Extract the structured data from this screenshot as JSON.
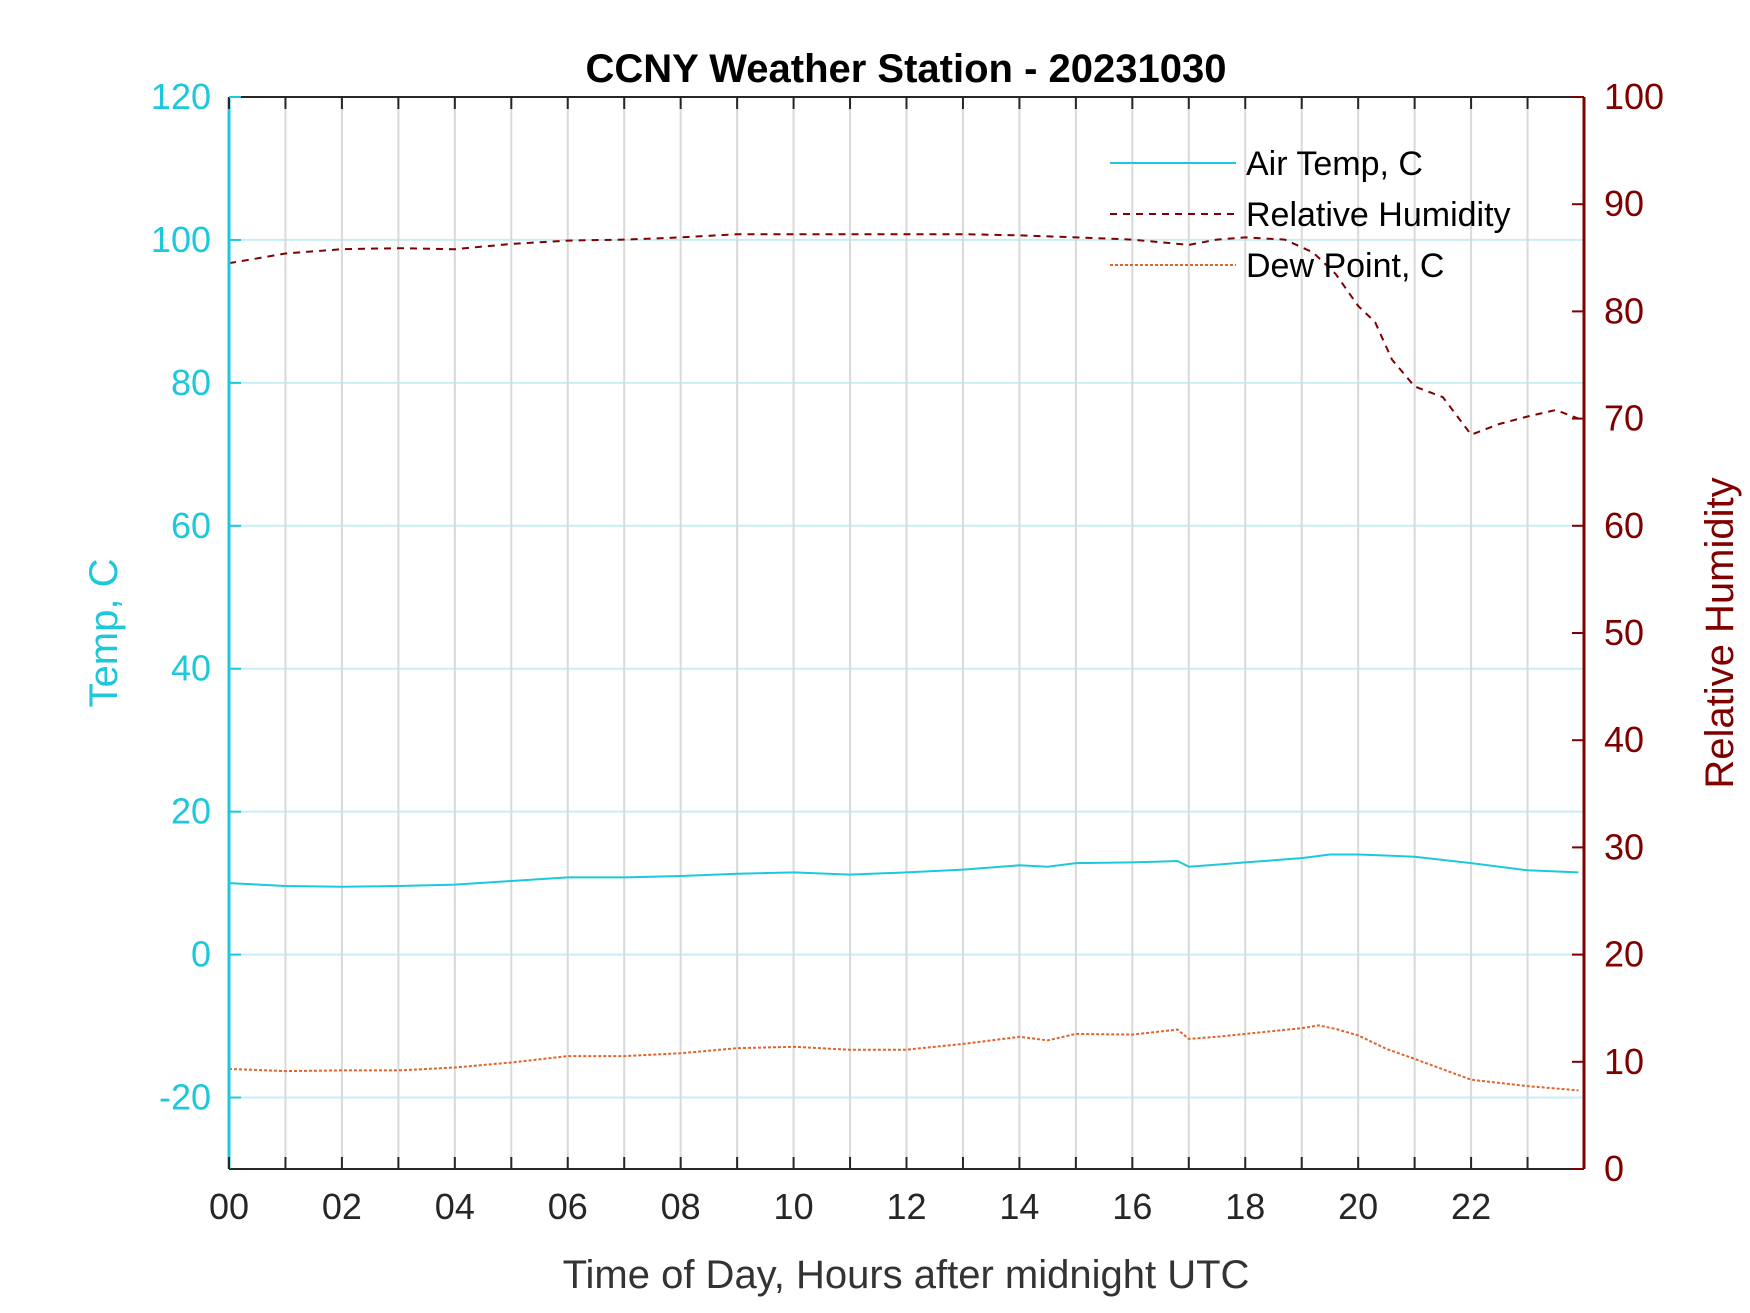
{
  "chart_data": {
    "type": "line",
    "title": "CCNY Weather Station - 20231030",
    "xlabel": "Time of Day, Hours after midnight UTC",
    "ylabel_left": "Temp, C",
    "ylabel_right": "Relative Humidity",
    "xlim": [
      0,
      24
    ],
    "ylim_left": [
      -30,
      120
    ],
    "ylim_right": [
      0,
      100
    ],
    "x_ticks": [
      0,
      2,
      4,
      6,
      8,
      10,
      12,
      14,
      16,
      18,
      20,
      22
    ],
    "x_tick_labels": [
      "00",
      "02",
      "04",
      "06",
      "08",
      "10",
      "12",
      "14",
      "16",
      "18",
      "20",
      "22"
    ],
    "y_left_ticks": [
      120,
      100,
      80,
      60,
      40,
      20,
      0,
      -20
    ],
    "y_right_ticks": [
      100,
      90,
      80,
      70,
      60,
      50,
      40,
      30,
      20,
      10,
      0
    ],
    "grid": true,
    "legend_position": "top-right",
    "colors": {
      "left_axis": "#1ec8dc",
      "right_axis": "#800000",
      "air_temp": "#1ec8dc",
      "rel_humidity": "#800000",
      "dew_point": "#e0642a",
      "h_grid": "#c8eef5",
      "v_grid": "#d9d9d9"
    },
    "series": [
      {
        "name": "Air Temp, C",
        "axis": "left",
        "style": "solid",
        "x": [
          0,
          1,
          2,
          3,
          4,
          5,
          6,
          7,
          8,
          9,
          10,
          11,
          12,
          13,
          14,
          14.5,
          15,
          16,
          16.8,
          17,
          17.5,
          18,
          19,
          19.5,
          20,
          21,
          22,
          23,
          23.9
        ],
        "y": [
          10,
          9.6,
          9.5,
          9.6,
          9.8,
          10.3,
          10.8,
          10.8,
          11,
          11.3,
          11.5,
          11.2,
          11.5,
          11.9,
          12.5,
          12.3,
          12.8,
          12.9,
          13.1,
          12.3,
          12.6,
          12.9,
          13.5,
          14,
          14,
          13.7,
          12.8,
          11.8,
          11.5
        ]
      },
      {
        "name": "Relative Humidity",
        "axis": "right",
        "style": "dashed",
        "x": [
          0,
          1,
          2,
          3,
          4,
          5,
          6,
          7,
          8,
          9,
          10,
          11,
          12,
          13,
          14,
          15,
          16,
          17,
          17.5,
          18,
          18.7,
          19.2,
          19.6,
          20,
          20.3,
          20.6,
          21,
          21.5,
          22,
          22.5,
          23,
          23.5,
          23.9
        ],
        "y": [
          84.5,
          85.4,
          85.8,
          85.9,
          85.8,
          86.3,
          86.6,
          86.7,
          86.9,
          87.2,
          87.2,
          87.2,
          87.2,
          87.2,
          87.1,
          86.9,
          86.7,
          86.2,
          86.7,
          86.9,
          86.7,
          85.5,
          83.5,
          80.5,
          79,
          75.5,
          73,
          72,
          68.5,
          69.5,
          70.2,
          70.8,
          70
        ]
      },
      {
        "name": "Dew Point, C",
        "axis": "left",
        "style": "dotted",
        "x": [
          0,
          1,
          2,
          3,
          4,
          5,
          6,
          7,
          8,
          9,
          10,
          11,
          12,
          13,
          14,
          14.5,
          15,
          16,
          16.8,
          17,
          17.5,
          18,
          19,
          19.3,
          19.6,
          20,
          20.5,
          21,
          22,
          23,
          23.9
        ],
        "y": [
          -16,
          -16.3,
          -16.2,
          -16.2,
          -15.8,
          -15.1,
          -14.2,
          -14.2,
          -13.8,
          -13.1,
          -12.9,
          -13.3,
          -13.3,
          -12.5,
          -11.5,
          -12,
          -11.1,
          -11.2,
          -10.5,
          -11.8,
          -11.5,
          -11.1,
          -10.3,
          -9.9,
          -10.4,
          -11.3,
          -13.2,
          -14.6,
          -17.5,
          -18.4,
          -19
        ]
      }
    ]
  }
}
